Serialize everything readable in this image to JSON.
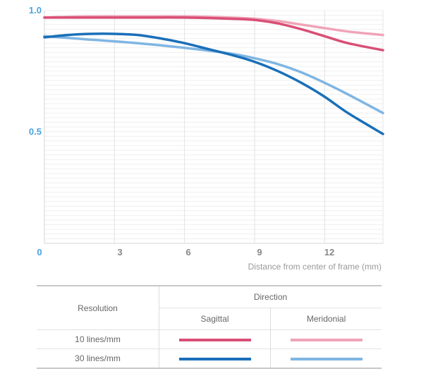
{
  "chart_data": {
    "type": "line",
    "title": "",
    "xlabel": "Distance from center of frame (mm)",
    "ylabel": "",
    "xlim": [
      0,
      14.5
    ],
    "ylim": [
      0,
      1.0
    ],
    "x_ticks": [
      "0",
      "3",
      "6",
      "9",
      "12"
    ],
    "y_ticks": [
      "0.5",
      "1.0"
    ],
    "grid": true,
    "series": [
      {
        "name": "10 lines/mm Sagittal",
        "color": "#d94f75",
        "x": [
          0,
          2,
          4,
          6,
          8,
          9,
          10,
          11,
          12,
          13,
          14.5
        ],
        "y": [
          0.97,
          0.97,
          0.97,
          0.97,
          0.965,
          0.96,
          0.945,
          0.92,
          0.89,
          0.86,
          0.83
        ]
      },
      {
        "name": "10 lines/mm Meridonial",
        "color": "#f0a4b8",
        "x": [
          0,
          2,
          4,
          6,
          8,
          9,
          10,
          11,
          12,
          13,
          14.5
        ],
        "y": [
          0.97,
          0.975,
          0.975,
          0.975,
          0.97,
          0.965,
          0.955,
          0.94,
          0.925,
          0.91,
          0.895
        ]
      },
      {
        "name": "30 lines/mm Sagittal",
        "color": "#1a6fb8",
        "x": [
          0,
          1,
          2,
          3,
          4,
          5,
          6,
          7,
          8,
          9,
          10,
          11,
          12,
          13,
          14.5
        ],
        "y": [
          0.885,
          0.895,
          0.9,
          0.9,
          0.895,
          0.88,
          0.86,
          0.835,
          0.81,
          0.78,
          0.74,
          0.69,
          0.63,
          0.56,
          0.47
        ]
      },
      {
        "name": "30 lines/mm Meridonial",
        "color": "#7fb6e3",
        "x": [
          0,
          2,
          4,
          6,
          8,
          9,
          10,
          11,
          12,
          13,
          14.5
        ],
        "y": [
          0.89,
          0.875,
          0.86,
          0.84,
          0.815,
          0.795,
          0.77,
          0.735,
          0.69,
          0.64,
          0.56
        ]
      }
    ]
  },
  "legend": {
    "direction_header": "Direction",
    "resolution_header": "Resolution",
    "sagittal": "Sagittal",
    "meridonial": "Meridonial",
    "rows": [
      {
        "label": "10 lines/mm",
        "sagittal_color": "#d94f75",
        "meridonial_color": "#f0a4b8"
      },
      {
        "label": "30 lines/mm",
        "sagittal_color": "#1a6fb8",
        "meridonial_color": "#7fb6e3"
      }
    ]
  }
}
